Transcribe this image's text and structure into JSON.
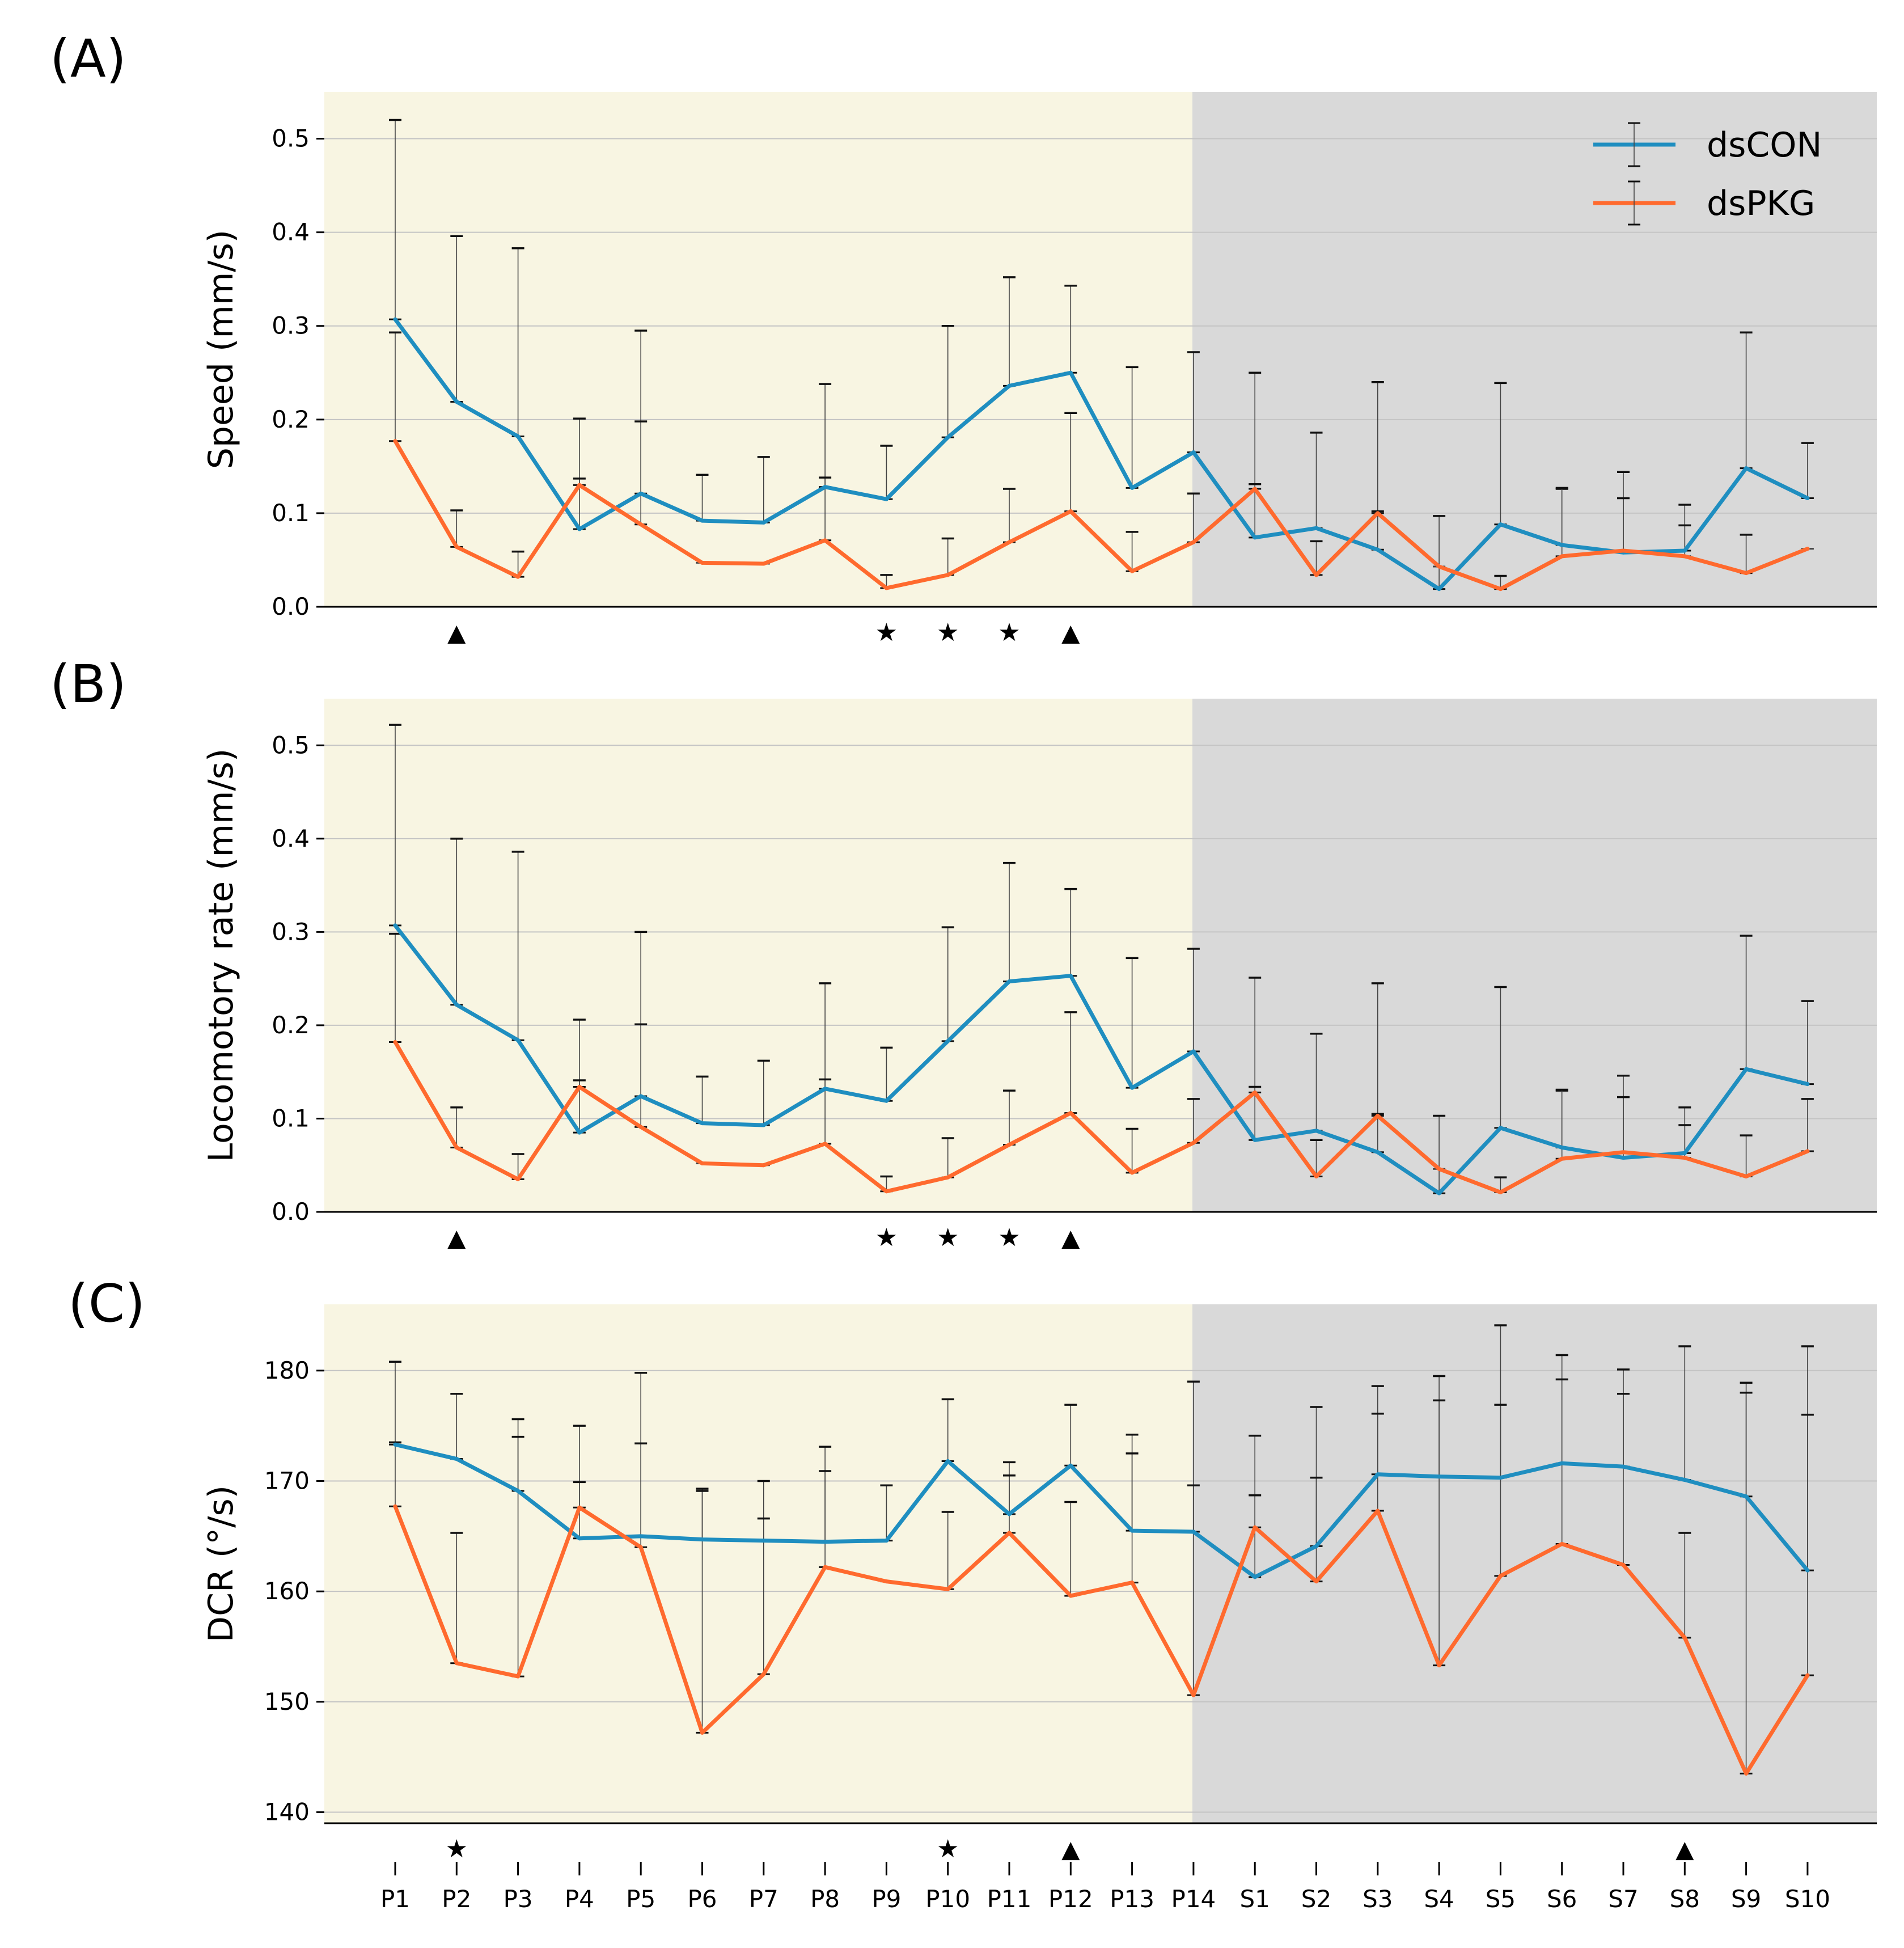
{
  "colors": {
    "series_dsCON": "#1f8ec0",
    "series_dsPKG": "#ff6a2e",
    "bg_P": "#f8f5e2",
    "bg_S": "#d9d9d9",
    "grid": "#c4c4c4",
    "errorbar": "#444444"
  },
  "chart_data": [
    {
      "type": "line",
      "panel_label": "(A)",
      "ylabel": "Speed (mm/s)",
      "ylim": [
        0,
        0.55
      ],
      "yticks": [
        0.0,
        0.1,
        0.2,
        0.3,
        0.4,
        0.5
      ],
      "ytick_labels": [
        "0.0",
        "0.1",
        "0.2",
        "0.3",
        "0.4",
        "0.5"
      ],
      "categories": [
        "P1",
        "P2",
        "P3",
        "P4",
        "P5",
        "P6",
        "P7",
        "P8",
        "P9",
        "P10",
        "P11",
        "P12",
        "P13",
        "P14",
        "S1",
        "S2",
        "S3",
        "S4",
        "S5",
        "S6",
        "S7",
        "S8",
        "S9",
        "S10"
      ],
      "series": [
        {
          "name": "dsCON",
          "values": [
            0.307,
            0.219,
            0.182,
            0.083,
            0.121,
            0.092,
            0.09,
            0.128,
            0.115,
            0.181,
            0.236,
            0.25,
            0.127,
            0.165,
            0.074,
            0.084,
            0.061,
            0.019,
            0.088,
            0.066,
            0.058,
            0.06,
            0.148,
            0.116
          ],
          "upper": [
            0.52,
            0.396,
            0.383,
            0.201,
            0.295,
            0.141,
            0.16,
            0.238,
            0.172,
            0.3,
            0.352,
            0.343,
            0.256,
            0.272,
            0.25,
            0.186,
            0.24,
            0.097,
            0.239,
            0.126,
            0.144,
            0.109,
            0.293,
            0.175
          ]
        },
        {
          "name": "dsPKG",
          "values": [
            0.177,
            0.064,
            0.032,
            0.13,
            0.088,
            0.047,
            0.046,
            0.071,
            0.02,
            0.034,
            0.069,
            0.102,
            0.038,
            0.069,
            0.126,
            0.034,
            0.1,
            0.043,
            0.019,
            0.054,
            0.06,
            0.054,
            0.036,
            0.062
          ],
          "upper": [
            0.293,
            0.103,
            0.059,
            0.137,
            0.198,
            0.047,
            0.046,
            0.138,
            0.034,
            0.073,
            0.126,
            0.207,
            0.08,
            0.121,
            0.131,
            0.07,
            0.102,
            0.043,
            0.033,
            0.127,
            0.116,
            0.087,
            0.077,
            0.062
          ]
        }
      ],
      "markers": [
        {
          "category": "P2",
          "symbol": "▲"
        },
        {
          "category": "P9",
          "symbol": "★"
        },
        {
          "category": "P10",
          "symbol": "★"
        },
        {
          "category": "P11",
          "symbol": "★"
        },
        {
          "category": "P12",
          "symbol": "▲"
        }
      ],
      "legend": {
        "position": "top-right",
        "entries": [
          "dsCON",
          "dsPKG"
        ]
      },
      "show_xticklabels": false
    },
    {
      "type": "line",
      "panel_label": "(B)",
      "ylabel": "Locomotory rate (mm/s)",
      "ylim": [
        0,
        0.55
      ],
      "yticks": [
        0.0,
        0.1,
        0.2,
        0.3,
        0.4,
        0.5
      ],
      "ytick_labels": [
        "0.0",
        "0.1",
        "0.2",
        "0.3",
        "0.4",
        "0.5"
      ],
      "categories": [
        "P1",
        "P2",
        "P3",
        "P4",
        "P5",
        "P6",
        "P7",
        "P8",
        "P9",
        "P10",
        "P11",
        "P12",
        "P13",
        "P14",
        "S1",
        "S2",
        "S3",
        "S4",
        "S5",
        "S6",
        "S7",
        "S8",
        "S9",
        "S10"
      ],
      "series": [
        {
          "name": "dsCON",
          "values": [
            0.307,
            0.222,
            0.184,
            0.085,
            0.124,
            0.095,
            0.093,
            0.132,
            0.119,
            0.183,
            0.247,
            0.253,
            0.133,
            0.172,
            0.077,
            0.087,
            0.064,
            0.02,
            0.09,
            0.069,
            0.058,
            0.063,
            0.153,
            0.137
          ],
          "upper": [
            0.522,
            0.4,
            0.386,
            0.206,
            0.3,
            0.145,
            0.162,
            0.245,
            0.176,
            0.305,
            0.374,
            0.346,
            0.272,
            0.282,
            0.251,
            0.191,
            0.245,
            0.103,
            0.241,
            0.13,
            0.146,
            0.112,
            0.296,
            0.226
          ]
        },
        {
          "name": "dsPKG",
          "values": [
            0.182,
            0.069,
            0.035,
            0.134,
            0.091,
            0.052,
            0.05,
            0.073,
            0.022,
            0.037,
            0.072,
            0.106,
            0.042,
            0.074,
            0.128,
            0.038,
            0.103,
            0.046,
            0.021,
            0.057,
            0.064,
            0.058,
            0.038,
            0.065
          ],
          "upper": [
            0.298,
            0.112,
            0.062,
            0.141,
            0.201,
            0.052,
            0.05,
            0.142,
            0.038,
            0.079,
            0.13,
            0.214,
            0.089,
            0.121,
            0.134,
            0.077,
            0.105,
            0.046,
            0.037,
            0.131,
            0.123,
            0.093,
            0.082,
            0.121
          ]
        }
      ],
      "markers": [
        {
          "category": "P2",
          "symbol": "▲"
        },
        {
          "category": "P9",
          "symbol": "★"
        },
        {
          "category": "P10",
          "symbol": "★"
        },
        {
          "category": "P11",
          "symbol": "★"
        },
        {
          "category": "P12",
          "symbol": "▲"
        }
      ],
      "show_xticklabels": false
    },
    {
      "type": "line",
      "panel_label": "(C)",
      "ylabel": "DCR (°/s)",
      "ylim": [
        139,
        186
      ],
      "yticks": [
        140,
        150,
        160,
        170,
        180
      ],
      "ytick_labels": [
        "140",
        "150",
        "160",
        "170",
        "180"
      ],
      "categories": [
        "P1",
        "P2",
        "P3",
        "P4",
        "P5",
        "P6",
        "P7",
        "P8",
        "P9",
        "P10",
        "P11",
        "P12",
        "P13",
        "P14",
        "S1",
        "S2",
        "S3",
        "S4",
        "S5",
        "S6",
        "S7",
        "S8",
        "S9",
        "S10"
      ],
      "series": [
        {
          "name": "dsCON",
          "values": [
            173.3,
            172.0,
            169.1,
            164.8,
            165.0,
            164.7,
            164.6,
            164.5,
            164.6,
            171.8,
            167.0,
            171.4,
            165.5,
            165.4,
            161.3,
            164.1,
            170.6,
            170.4,
            170.3,
            171.6,
            171.3,
            170.1,
            168.6,
            161.9
          ],
          "upper": [
            180.8,
            177.9,
            175.6,
            175.0,
            179.8,
            169.3,
            170.0,
            173.1,
            169.6,
            177.4,
            171.7,
            176.9,
            174.2,
            179.0,
            174.1,
            176.7,
            178.6,
            179.5,
            184.1,
            181.4,
            180.1,
            182.2,
            178.9,
            182.2
          ]
        },
        {
          "name": "dsPKG",
          "values": [
            167.7,
            153.5,
            152.3,
            167.6,
            164.0,
            147.2,
            152.5,
            162.2,
            160.9,
            160.2,
            165.3,
            159.6,
            160.8,
            150.6,
            165.8,
            160.9,
            167.3,
            153.3,
            161.4,
            164.3,
            162.4,
            155.8,
            143.5,
            152.4
          ],
          "upper": [
            173.5,
            165.3,
            174.0,
            169.9,
            173.4,
            169.1,
            166.6,
            170.9,
            160.9,
            167.2,
            170.5,
            168.1,
            172.5,
            169.6,
            168.7,
            170.3,
            176.1,
            177.3,
            176.9,
            179.2,
            177.9,
            165.3,
            178.0,
            176.0
          ]
        }
      ],
      "markers": [
        {
          "category": "P2",
          "symbol": "★"
        },
        {
          "category": "P10",
          "symbol": "★"
        },
        {
          "category": "P12",
          "symbol": "▲"
        },
        {
          "category": "S8",
          "symbol": "▲"
        }
      ],
      "show_xticklabels": true
    }
  ]
}
